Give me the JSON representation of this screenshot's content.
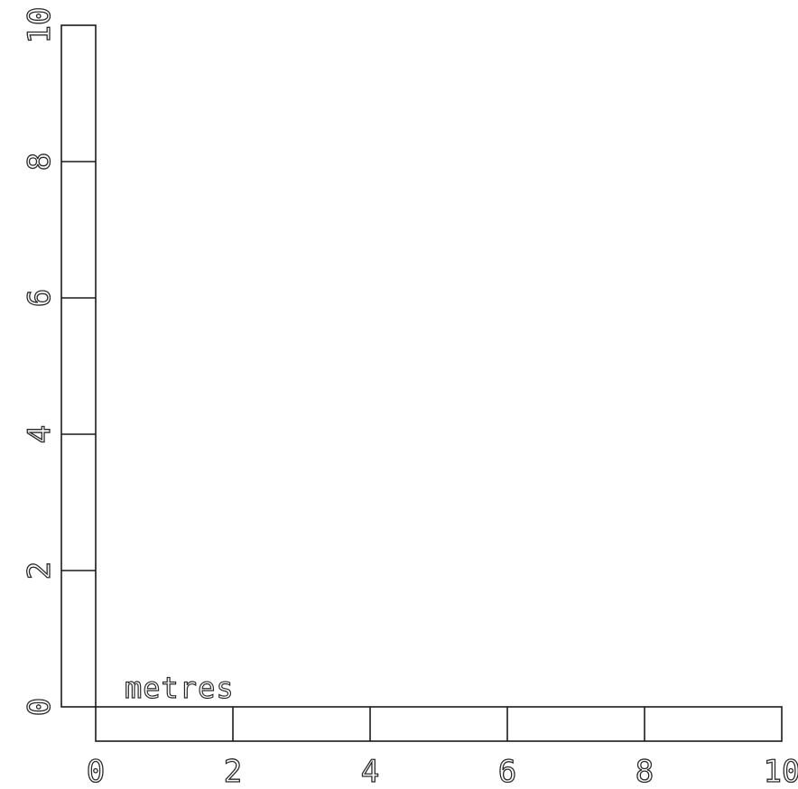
{
  "scale_bar": {
    "units_label": "metres",
    "horizontal": {
      "min": 0,
      "max": 10,
      "segment_boundaries": [
        0,
        2,
        4,
        6,
        8,
        10
      ],
      "tick_labels": [
        "0",
        "2",
        "4",
        "6",
        "8",
        "10"
      ]
    },
    "vertical": {
      "min": 0,
      "max": 10,
      "segment_boundaries": [
        0,
        2,
        4,
        6,
        8,
        10
      ],
      "tick_labels": [
        "0",
        "2",
        "4",
        "6",
        "8",
        "10"
      ]
    }
  }
}
